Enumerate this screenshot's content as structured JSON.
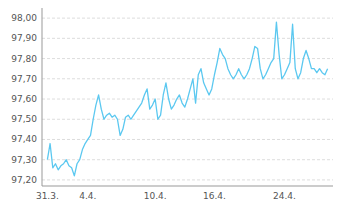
{
  "chart_data": {
    "type": "line",
    "color": "#5bc8f0",
    "grid": true,
    "categories": [
      "31.3.",
      null,
      null,
      null,
      null,
      null,
      null,
      null,
      null,
      null,
      null,
      null,
      null,
      null,
      null,
      "4.4.",
      null,
      null,
      null,
      null,
      null,
      null,
      null,
      null,
      null,
      null,
      null,
      null,
      null,
      null,
      null,
      null,
      null,
      null,
      null,
      null,
      null,
      null,
      null,
      null,
      "10.4.",
      null,
      null,
      null,
      null,
      null,
      null,
      null,
      null,
      null,
      null,
      null,
      null,
      null,
      null,
      null,
      null,
      null,
      null,
      null,
      null,
      null,
      "16.4.",
      null,
      null,
      null,
      null,
      null,
      null,
      null,
      null,
      null,
      null,
      null,
      null,
      null,
      null,
      null,
      null,
      null,
      null,
      null,
      null,
      null,
      null,
      null,
      null,
      null,
      "24.4.",
      null,
      null,
      null,
      null,
      null,
      null,
      null,
      null,
      null,
      null,
      null,
      null,
      null,
      null,
      null,
      null
    ],
    "values": [
      97.3,
      97.38,
      97.26,
      97.28,
      97.25,
      97.27,
      97.28,
      97.3,
      97.27,
      97.26,
      97.22,
      97.28,
      97.3,
      97.35,
      97.38,
      97.4,
      97.42,
      97.5,
      97.57,
      97.62,
      97.55,
      97.5,
      97.52,
      97.53,
      97.51,
      97.52,
      97.5,
      97.42,
      97.45,
      97.51,
      97.52,
      97.5,
      97.52,
      97.54,
      97.56,
      97.58,
      97.62,
      97.65,
      97.55,
      97.57,
      97.6,
      97.5,
      97.52,
      97.62,
      97.68,
      97.6,
      97.55,
      97.57,
      97.6,
      97.62,
      97.58,
      97.56,
      97.6,
      97.65,
      97.7,
      97.58,
      97.72,
      97.75,
      97.68,
      97.65,
      97.62,
      97.65,
      97.72,
      97.78,
      97.85,
      97.82,
      97.8,
      97.75,
      97.72,
      97.7,
      97.72,
      97.75,
      97.72,
      97.7,
      97.72,
      97.75,
      97.8,
      97.86,
      97.85,
      97.75,
      97.7,
      97.72,
      97.75,
      97.78,
      97.8,
      97.98,
      97.82,
      97.7,
      97.72,
      97.75,
      97.78,
      97.97,
      97.75,
      97.7,
      97.73,
      97.8,
      97.84,
      97.8,
      97.75,
      97.75,
      97.73,
      97.75,
      97.73,
      97.72,
      97.75
    ],
    "ylim": [
      97.17,
      98.05
    ],
    "yticks": [
      {
        "value": 97.2,
        "label": "97,20"
      },
      {
        "value": 97.3,
        "label": "97,30"
      },
      {
        "value": 97.4,
        "label": "97,40"
      },
      {
        "value": 97.5,
        "label": "97,50"
      },
      {
        "value": 97.6,
        "label": "97,60"
      },
      {
        "value": 97.7,
        "label": "97,70"
      },
      {
        "value": 97.8,
        "label": "97,80"
      },
      {
        "value": 97.9,
        "label": "97,90"
      },
      {
        "value": 98.0,
        "label": "98,00"
      }
    ]
  }
}
